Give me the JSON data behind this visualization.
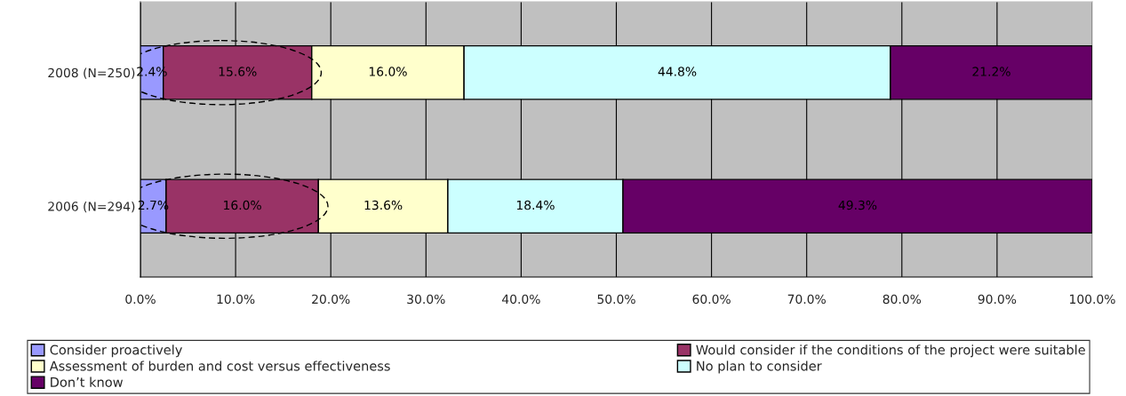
{
  "chart_data": {
    "type": "bar",
    "orientation": "horizontal",
    "stacked": true,
    "categories": [
      "2008 (N=250)",
      "2006 (N=294)"
    ],
    "series": [
      {
        "name": "Consider proactively",
        "color": "#9999ff",
        "values": [
          2.4,
          2.7
        ],
        "value_labels": [
          "2.4%",
          "2.7%"
        ]
      },
      {
        "name": "Would consider if the conditions of the project were suitable",
        "color": "#993366",
        "values": [
          15.6,
          16.0
        ],
        "value_labels": [
          "15.6%",
          "16.0%"
        ]
      },
      {
        "name": "Assessment of burden and cost versus effectiveness",
        "color": "#ffffcc",
        "values": [
          16.0,
          13.6
        ],
        "value_labels": [
          "16.0%",
          "13.6%"
        ]
      },
      {
        "name": "No plan to consider",
        "color": "#ccffff",
        "values": [
          44.8,
          18.4
        ],
        "value_labels": [
          "44.8%",
          "18.4%"
        ]
      },
      {
        "name": "Don’t know",
        "color": "#660066",
        "values": [
          21.2,
          49.3
        ],
        "value_labels": [
          "21.2%",
          "49.3%"
        ]
      }
    ],
    "xlim": [
      0,
      100
    ],
    "xticks": [
      {
        "value": 0,
        "label": "0.0%"
      },
      {
        "value": 10,
        "label": "10.0%"
      },
      {
        "value": 20,
        "label": "20.0%"
      },
      {
        "value": 30,
        "label": "30.0%"
      },
      {
        "value": 40,
        "label": "40.0%"
      },
      {
        "value": 50,
        "label": "50.0%"
      },
      {
        "value": 60,
        "label": "60.0%"
      },
      {
        "value": 70,
        "label": "70.0%"
      },
      {
        "value": 80,
        "label": "80.0%"
      },
      {
        "value": 90,
        "label": "90.0%"
      },
      {
        "value": 100,
        "label": "100.0%"
      }
    ],
    "grid": "x",
    "legend": "bottom"
  }
}
